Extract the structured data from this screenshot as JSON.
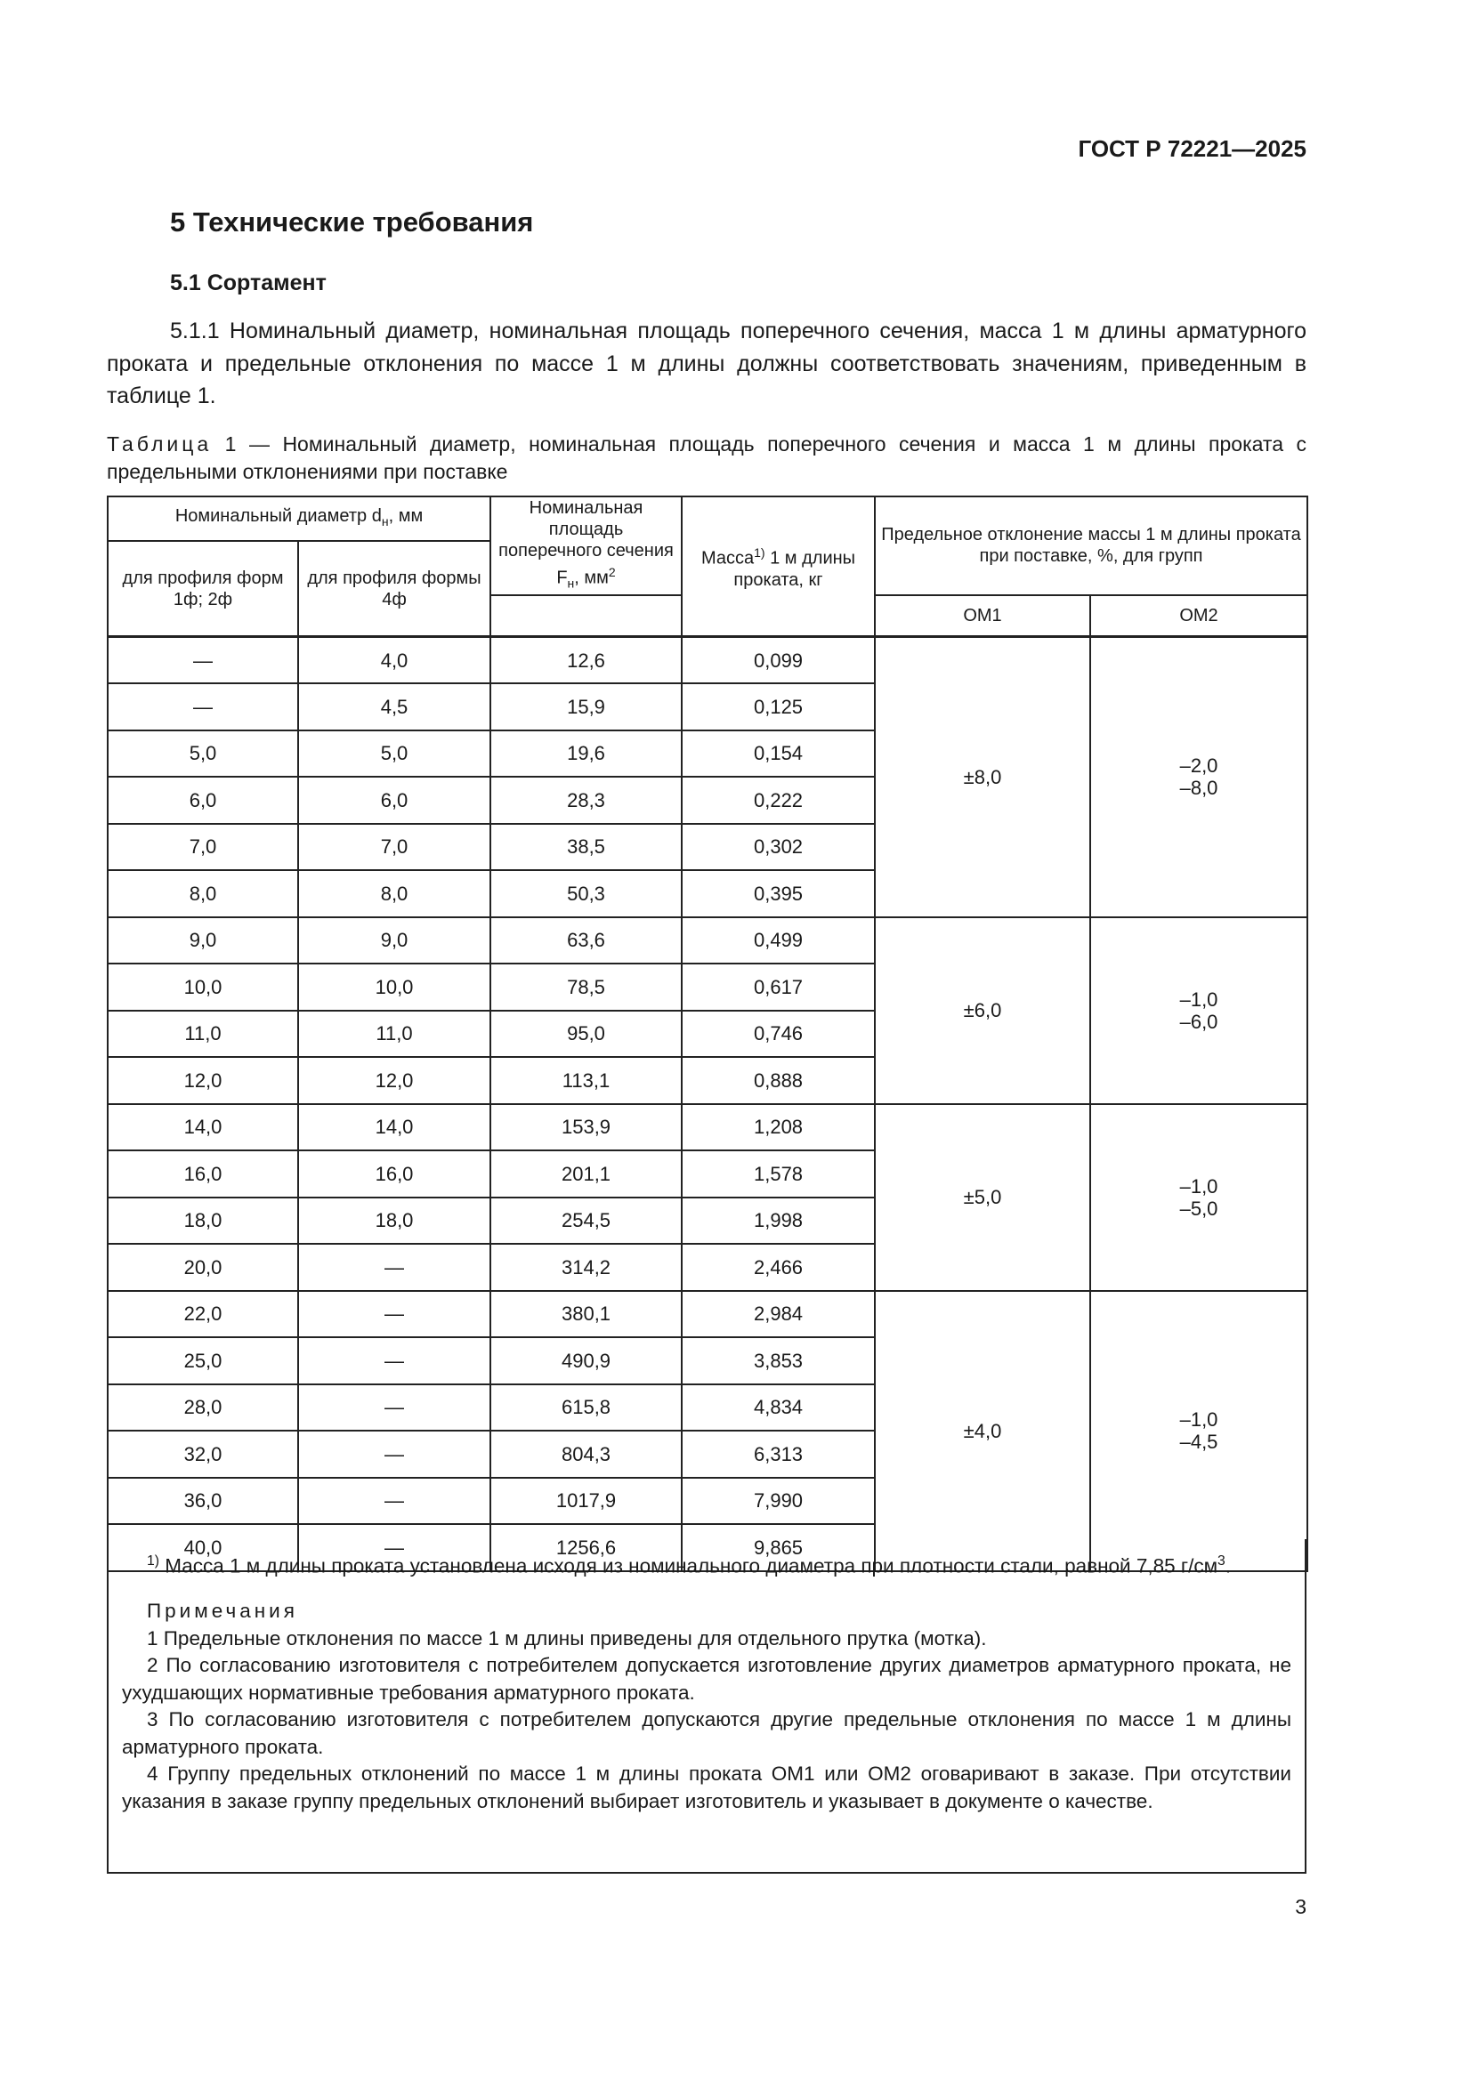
{
  "header": {
    "doc_code": "ГОСТ Р 72221—2025"
  },
  "section_title": "5 Технические требования",
  "subsection_title": "5.1 Сортамент",
  "paragraph": "5.1.1 Номинальный диаметр, номинальная площадь поперечного сечения, масса 1 м длины арматурного проката и предельные отклонения по массе 1 м длины должны соответствовать значениям, приведенным в таблице 1.",
  "table_caption": {
    "label": "Таблица",
    "text": " 1 — Номинальный диаметр, номинальная площадь поперечного сечения и масса 1 м длины проката с предельными отклонениями при поставке"
  },
  "table": {
    "headers": {
      "diameter_group": "Номинальный диаметр d",
      "diameter_sub": "н",
      "diameter_unit": ", мм",
      "profile_1_2": "для профиля форм 1ф; 2ф",
      "profile_4": "для профиля формы 4ф",
      "area": "Номинальная площадь поперечного сечения F",
      "area_sub": "н",
      "area_unit": ", мм",
      "area_sup": "2",
      "mass": "Масса",
      "mass_sup": "1)",
      "mass_rest": " 1 м длины проката, кг",
      "deviation": "Предельное отклонение массы 1 м длины проката при поставке, %, для групп",
      "om1": "ОМ1",
      "om2": "ОМ2"
    },
    "rows": [
      [
        "—",
        "4,0",
        "12,6",
        "0,099"
      ],
      [
        "—",
        "4,5",
        "15,9",
        "0,125"
      ],
      [
        "5,0",
        "5,0",
        "19,6",
        "0,154"
      ],
      [
        "6,0",
        "6,0",
        "28,3",
        "0,222"
      ],
      [
        "7,0",
        "7,0",
        "38,5",
        "0,302"
      ],
      [
        "8,0",
        "8,0",
        "50,3",
        "0,395"
      ],
      [
        "9,0",
        "9,0",
        "63,6",
        "0,499"
      ],
      [
        "10,0",
        "10,0",
        "78,5",
        "0,617"
      ],
      [
        "11,0",
        "11,0",
        "95,0",
        "0,746"
      ],
      [
        "12,0",
        "12,0",
        "113,1",
        "0,888"
      ],
      [
        "14,0",
        "14,0",
        "153,9",
        "1,208"
      ],
      [
        "16,0",
        "16,0",
        "201,1",
        "1,578"
      ],
      [
        "18,0",
        "18,0",
        "254,5",
        "1,998"
      ],
      [
        "20,0",
        "—",
        "314,2",
        "2,466"
      ],
      [
        "22,0",
        "—",
        "380,1",
        "2,984"
      ],
      [
        "25,0",
        "—",
        "490,9",
        "3,853"
      ],
      [
        "28,0",
        "—",
        "615,8",
        "4,834"
      ],
      [
        "32,0",
        "—",
        "804,3",
        "6,313"
      ],
      [
        "36,0",
        "—",
        "1017,9",
        "7,990"
      ],
      [
        "40,0",
        "—",
        "1256,6",
        "9,865"
      ]
    ],
    "groups": [
      {
        "rows": 6,
        "om1": "±8,0",
        "om2": [
          "–2,0",
          "–8,0"
        ]
      },
      {
        "rows": 4,
        "om1": "±6,0",
        "om2": [
          "–1,0",
          "–6,0"
        ]
      },
      {
        "rows": 4,
        "om1": "±5,0",
        "om2": [
          "–1,0",
          "–5,0"
        ]
      },
      {
        "rows": 6,
        "om1": "±4,0",
        "om2": [
          "–1,0",
          "–4,5"
        ]
      }
    ]
  },
  "footnote": {
    "mark": "1)",
    "text": " Масса 1 м длины проката установлена исходя из номинального диаметра при плотности стали, равной 7,85 г/см",
    "sup": "3",
    "end": "."
  },
  "notes": {
    "title": "Примечания",
    "items": [
      "1 Предельные отклонения по массе 1 м длины приведены для отдельного прутка (мотка).",
      "2 По согласованию изготовителя с потребителем допускается изготовление других диаметров арматурного проката, не ухудшающих нормативные требования арматурного проката.",
      "3 По согласованию изготовителя с потребителем допускаются другие предельные отклонения по массе 1 м длины арматурного проката.",
      "4 Группу предельных отклонений по массе 1 м длины проката ОМ1 или ОМ2 оговаривают в заказе. При отсутствии указания в заказе группу предельных отклонений выбирает изготовитель и указывает в документе о качестве."
    ]
  },
  "page_number": "3"
}
